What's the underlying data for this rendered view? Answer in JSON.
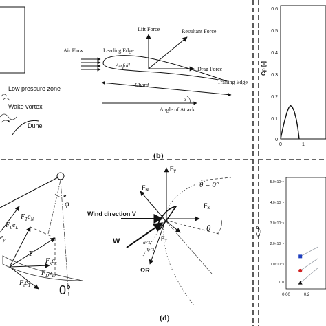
{
  "panel_a": {
    "low_pressure_label": "Low pressure zone",
    "wake_vortex_label": "Wake vortex",
    "dune_label": "Dune"
  },
  "panel_b": {
    "label": "(b)",
    "lift_force": "Lift Force",
    "resultant_force": "Resultant Force",
    "air_flow": "Air Flow",
    "leading_edge": "Leading Edge",
    "airfoil": "Airfoil",
    "drag_force": "Drag Force",
    "trailing_edge": "Trailing Edge",
    "chord": "Chord",
    "alpha": "α",
    "angle_of_attack": "Angle of Attack"
  },
  "panel_c": {
    "phi": "φ",
    "ey": "e",
    "ey_sub": "y",
    "fl_el": "F",
    "fl_el_sub1": "L",
    "fl_el_mid": "e",
    "fl_el_sub2": "L",
    "ft_en": "F",
    "ft_en_sub1": "T",
    "ft_en_mid": "e",
    "ft_en_sub2": "N",
    "f": "F",
    "fx_ex": "F",
    "fx_ex_sub": "x",
    "fx_ex_mid": "e",
    "fx_ex_sub2": "x",
    "fd_ed": "F",
    "fd_ed_sub": "D",
    "fd_ed_mid": "e",
    "fd_ed_sub2": "D",
    "ft_et": "F",
    "ft_et_sub": "t",
    "ft_et_mid": "e",
    "ft_et_sub2": "T",
    "zero_deg": "0°"
  },
  "panel_d": {
    "label": "(d)",
    "fy": "F",
    "fy_sub": "y",
    "fn": "F",
    "fn_sub": "N",
    "theta_zero": "θ = 0°",
    "fx": "F",
    "fx_sub": "x",
    "wind_direction": "Wind direction V",
    "w": "W",
    "alpha_lt0": "α<0",
    "phi_lt0": "φ<0",
    "ft": "F",
    "ft_sub": "T",
    "theta": "θ",
    "omega_r": "ΩR"
  },
  "chart_top": {
    "ylabel": "Cp [-]",
    "y_ticks": [
      "0.6",
      "0.5",
      "0.4",
      "0.3",
      "0.2",
      "0.1",
      "0"
    ],
    "x_ticks": [
      "0",
      "1"
    ]
  },
  "chart_bottom": {
    "ylabel": "C_P",
    "y_ticks": [
      "5.0×10⁻⁴",
      "4.0×10⁻⁴",
      "3.0×10⁻⁴",
      "2.0×10⁻⁴",
      "1.0×10⁻⁴",
      "0.0"
    ],
    "x_ticks": [
      "0.00",
      "0.2"
    ]
  },
  "colors": {
    "series_blue": "#1f3fbf",
    "series_red": "#d12020",
    "series_black": "#111111",
    "connector": "#9aa0a8"
  },
  "chart_data": [
    {
      "type": "line",
      "title": "",
      "xlabel": "",
      "ylabel": "Cp [-]",
      "xlim": [
        0,
        2.0
      ],
      "ylim": [
        0,
        0.6
      ],
      "grid": false,
      "series": [
        {
          "x": [
            0.0,
            0.2,
            0.4,
            0.6,
            0.8,
            0.95,
            1.1,
            1.3,
            1.5,
            1.65,
            1.78
          ],
          "y": [
            0.0,
            0.045,
            0.085,
            0.118,
            0.142,
            0.15,
            0.145,
            0.125,
            0.088,
            0.05,
            0.0
          ]
        }
      ]
    },
    {
      "type": "scatter",
      "title": "",
      "xlabel": "",
      "ylabel": "C_P",
      "xlim": [
        0.0,
        0.42
      ],
      "ylim": [
        -3e-05,
        0.00052
      ],
      "grid": false,
      "series": [
        {
          "marker": "square",
          "x": [
            0.15
          ],
          "y": [
            0.00013
          ]
        },
        {
          "marker": "circle",
          "x": [
            0.15
          ],
          "y": [
            6e-05
          ]
        },
        {
          "marker": "triangle",
          "x": [
            0.15
          ],
          "y": [
            0.0
          ]
        }
      ]
    }
  ]
}
